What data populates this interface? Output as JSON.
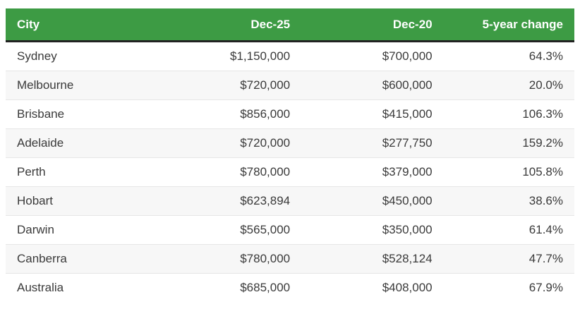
{
  "chart_data": {
    "type": "table",
    "columns": [
      "City",
      "Dec-25",
      "Dec-20",
      "5-year change"
    ],
    "rows": [
      [
        "Sydney",
        "$1,150,000",
        "$700,000",
        "64.3%"
      ],
      [
        "Melbourne",
        "$720,000",
        "$600,000",
        "20.0%"
      ],
      [
        "Brisbane",
        "$856,000",
        "$415,000",
        "106.3%"
      ],
      [
        "Adelaide",
        "$720,000",
        "$277,750",
        "159.2%"
      ],
      [
        "Perth",
        "$780,000",
        "$379,000",
        "105.8%"
      ],
      [
        "Hobart",
        "$623,894",
        "$450,000",
        "38.6%"
      ],
      [
        "Darwin",
        "$565,000",
        "$350,000",
        "61.4%"
      ],
      [
        "Canberra",
        "$780,000",
        "$528,124",
        "47.7%"
      ],
      [
        "Australia",
        "$685,000",
        "$408,000",
        "67.9%"
      ]
    ],
    "column_alignments": [
      "left",
      "right",
      "right",
      "right"
    ],
    "legend_position": "none",
    "grid": "horizontal-row-separators"
  },
  "colors": {
    "header_background": "#3d9b44",
    "header_text": "#ffffff",
    "header_bottom_border": "#222222",
    "row_background": "#ffffff",
    "row_alternate_background": "#f7f7f7",
    "row_separator": "#e6e6e6",
    "body_text": "#3a3a3a"
  }
}
